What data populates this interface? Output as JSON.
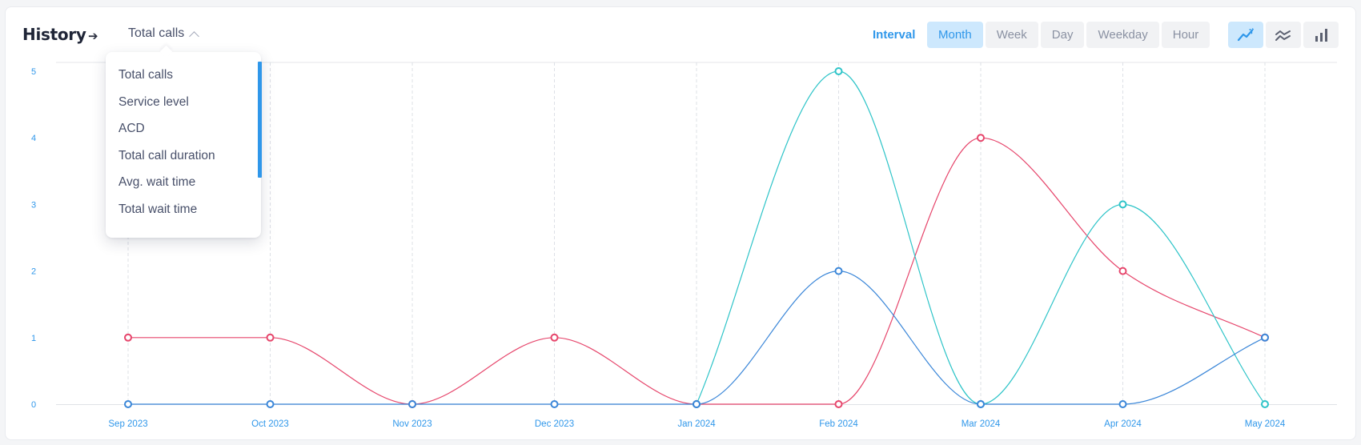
{
  "header": {
    "title": "History",
    "arrow_icon": "arrow-right-icon",
    "selected_metric": "Total calls"
  },
  "dropdown": {
    "items": [
      {
        "label": "Total calls"
      },
      {
        "label": "Service level"
      },
      {
        "label": "ACD"
      },
      {
        "label": "Total call duration"
      },
      {
        "label": "Avg. wait time"
      },
      {
        "label": "Total wait time"
      }
    ]
  },
  "interval": {
    "label": "Interval",
    "options": [
      {
        "label": "Month",
        "active": true
      },
      {
        "label": "Week",
        "active": false
      },
      {
        "label": "Day",
        "active": false
      },
      {
        "label": "Weekday",
        "active": false
      },
      {
        "label": "Hour",
        "active": false
      }
    ]
  },
  "chart_types": [
    {
      "icon": "line-chart-icon",
      "active": true
    },
    {
      "icon": "area-chart-icon",
      "active": false
    },
    {
      "icon": "bar-chart-icon",
      "active": false
    }
  ],
  "colors": {
    "accent": "#2f97ea",
    "series_red": "#e6456b",
    "series_teal": "#2ec4c8",
    "series_blue": "#3a86d8"
  },
  "chart_data": {
    "type": "line",
    "categories": [
      "Sep 2023",
      "Oct 2023",
      "Nov 2023",
      "Dec 2023",
      "Jan 2024",
      "Feb 2024",
      "Mar 2024",
      "Apr 2024",
      "May 2024"
    ],
    "yticks": [
      "0",
      "1",
      "2",
      "3",
      "4",
      "5"
    ],
    "ylim": [
      0,
      5
    ],
    "grid": true,
    "series": [
      {
        "color": "#e6456b",
        "values": [
          1,
          1,
          0,
          1,
          0,
          0,
          4,
          2,
          1
        ]
      },
      {
        "color": "#2ec4c8",
        "values": [
          null,
          null,
          null,
          null,
          0,
          5,
          0,
          3,
          0
        ]
      },
      {
        "color": "#3a86d8",
        "values": [
          0,
          0,
          0,
          0,
          0,
          2,
          0,
          0,
          1
        ]
      }
    ]
  }
}
